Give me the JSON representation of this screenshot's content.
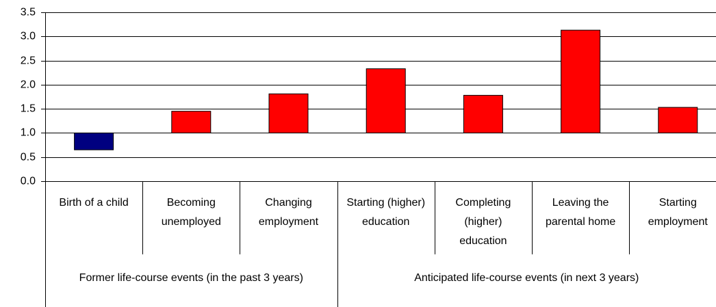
{
  "chart_data": {
    "type": "bar",
    "categories": [
      "Birth of a child",
      "Becoming unemployed",
      "Changing employment",
      "Starting (higher) education",
      "Completing (higher) education",
      "Leaving the parental home",
      "Starting employment"
    ],
    "values": [
      0.65,
      1.45,
      1.81,
      2.33,
      1.78,
      3.13,
      1.53
    ],
    "colors": [
      "#000080",
      "#ff0000",
      "#ff0000",
      "#ff0000",
      "#ff0000",
      "#ff0000",
      "#ff0000"
    ],
    "bar_base": 1,
    "groups": [
      {
        "name": "Former life-course events (in the past 3 years)",
        "span": 3
      },
      {
        "name": "Anticipated life-course events (in next 3 years)",
        "span": 4
      }
    ],
    "ylim": [
      0,
      3.5
    ],
    "yticks": [
      {
        "value": 0,
        "label": "0.0"
      },
      0.5,
      {
        "value": 1,
        "label": "1.0"
      },
      1.5,
      {
        "value": 2,
        "label": "2.0"
      },
      2.5,
      {
        "value": 3,
        "label": "3.0"
      },
      3.5
    ],
    "grid": true
  }
}
